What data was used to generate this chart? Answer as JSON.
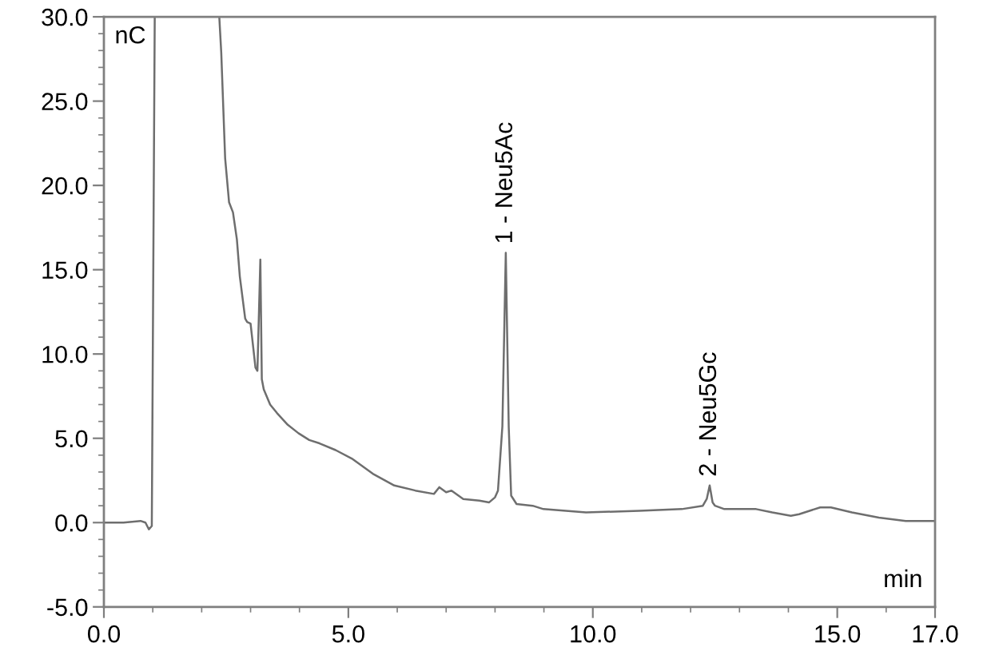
{
  "chart_data": {
    "type": "line",
    "xlabel": "min",
    "ylabel": "nC",
    "x": [
      0.0,
      0.4,
      0.75,
      0.85,
      0.92,
      0.98,
      1.04,
      1.7,
      2.36,
      2.4,
      2.48,
      2.56,
      2.64,
      2.72,
      2.78,
      2.89,
      2.93,
      3.0,
      3.1,
      3.14,
      3.2,
      3.23,
      3.27,
      3.4,
      3.54,
      3.76,
      3.98,
      4.2,
      4.41,
      4.74,
      5.07,
      5.5,
      5.94,
      6.37,
      6.75,
      6.86,
      7.0,
      7.11,
      7.35,
      7.68,
      7.88,
      8.0,
      8.06,
      8.15,
      8.22,
      8.28,
      8.33,
      8.44,
      8.77,
      8.99,
      9.86,
      10.95,
      11.82,
      12.25,
      12.33,
      12.39,
      12.45,
      12.5,
      12.69,
      13.34,
      13.67,
      14.05,
      14.22,
      14.65,
      14.87,
      15.3,
      15.85,
      16.4,
      17.0
    ],
    "series": [
      {
        "color": "#6e6e6e",
        "values": [
          0.0,
          0.0,
          0.1,
          0.0,
          -0.4,
          -0.2,
          30.0,
          null,
          30.0,
          27.9,
          21.6,
          19.0,
          18.4,
          16.8,
          14.6,
          12.1,
          11.9,
          11.8,
          9.2,
          9.0,
          15.6,
          8.5,
          7.9,
          7.0,
          6.5,
          5.8,
          5.3,
          4.9,
          4.7,
          4.3,
          3.8,
          2.9,
          2.2,
          1.9,
          1.7,
          2.1,
          1.8,
          1.9,
          1.4,
          1.3,
          1.2,
          1.5,
          1.9,
          5.7,
          16.0,
          5.7,
          1.6,
          1.1,
          1.0,
          0.8,
          0.6,
          0.7,
          0.8,
          1.0,
          1.4,
          2.2,
          1.2,
          1.0,
          0.8,
          0.8,
          0.6,
          0.4,
          0.5,
          0.9,
          0.9,
          0.6,
          0.3,
          0.1,
          0.1
        ]
      }
    ],
    "xlim": [
      0,
      17
    ],
    "ylim": [
      -5,
      30
    ],
    "xticks": [
      {
        "value": 0,
        "label": "0.0"
      },
      {
        "value": 1,
        "label": null
      },
      {
        "value": 2,
        "label": null
      },
      {
        "value": 3,
        "label": null
      },
      {
        "value": 4,
        "label": null
      },
      {
        "value": 5,
        "label": "5.0"
      },
      {
        "value": 6,
        "label": null
      },
      {
        "value": 7,
        "label": null
      },
      {
        "value": 8,
        "label": null
      },
      {
        "value": 9,
        "label": null
      },
      {
        "value": 10,
        "label": "10.0"
      },
      {
        "value": 11,
        "label": null
      },
      {
        "value": 12,
        "label": null
      },
      {
        "value": 13,
        "label": null
      },
      {
        "value": 14,
        "label": null
      },
      {
        "value": 15,
        "label": "15.0"
      },
      {
        "value": 16,
        "label": null
      },
      {
        "value": 17,
        "label": "17.0"
      }
    ],
    "yticks": [
      {
        "value": -5,
        "label": "-5.0"
      },
      {
        "value": -4,
        "label": null
      },
      {
        "value": -3,
        "label": null
      },
      {
        "value": -2,
        "label": null
      },
      {
        "value": -1,
        "label": null
      },
      {
        "value": 0,
        "label": "0.0"
      },
      {
        "value": 1,
        "label": null
      },
      {
        "value": 2,
        "label": null
      },
      {
        "value": 3,
        "label": null
      },
      {
        "value": 4,
        "label": null
      },
      {
        "value": 5,
        "label": "5.0"
      },
      {
        "value": 6,
        "label": null
      },
      {
        "value": 7,
        "label": null
      },
      {
        "value": 8,
        "label": null
      },
      {
        "value": 9,
        "label": null
      },
      {
        "value": 10,
        "label": "10.0"
      },
      {
        "value": 11,
        "label": null
      },
      {
        "value": 12,
        "label": null
      },
      {
        "value": 13,
        "label": null
      },
      {
        "value": 14,
        "label": null
      },
      {
        "value": 15,
        "label": "15.0"
      },
      {
        "value": 16,
        "label": null
      },
      {
        "value": 17,
        "label": null
      },
      {
        "value": 18,
        "label": null
      },
      {
        "value": 19,
        "label": null
      },
      {
        "value": 20,
        "label": "20.0"
      },
      {
        "value": 21,
        "label": null
      },
      {
        "value": 22,
        "label": null
      },
      {
        "value": 23,
        "label": null
      },
      {
        "value": 24,
        "label": null
      },
      {
        "value": 25,
        "label": "25.0"
      },
      {
        "value": 26,
        "label": null
      },
      {
        "value": 27,
        "label": null
      },
      {
        "value": 28,
        "label": null
      },
      {
        "value": 29,
        "label": null
      },
      {
        "value": 30,
        "label": "30.0"
      }
    ],
    "annotations": [
      {
        "text": "1 - Neu5Ac",
        "x": 8.22,
        "y": 16.0
      },
      {
        "text": "2 - Neu5Gc",
        "x": 12.39,
        "y": 2.2
      }
    ]
  }
}
